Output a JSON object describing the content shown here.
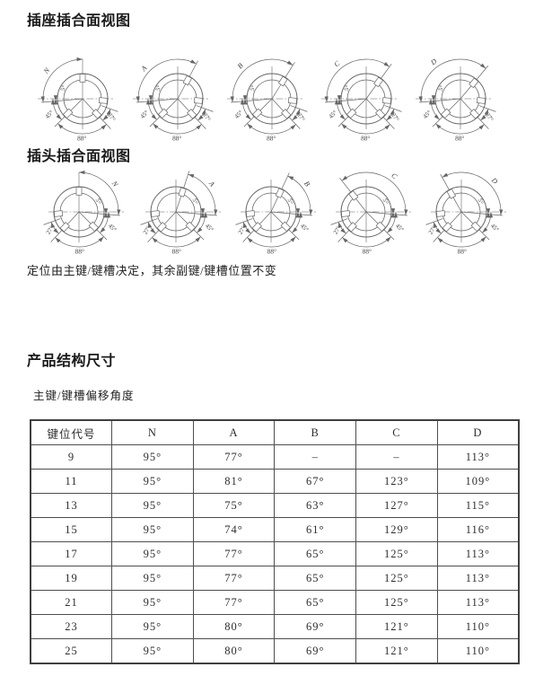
{
  "sections": {
    "socket_title": "插座插合面视图",
    "plug_title": "插头插合面视图",
    "note": "定位由主键/键槽决定，其余副键/键槽位置不变",
    "dims_title": "产品结构尺寸",
    "table_subtitle": "主键/键槽偏移角度"
  },
  "diagrams": {
    "dim_labels": {
      "offset": "5°",
      "lower": "45°",
      "bottom": "88°",
      "side": "27°"
    },
    "socket": {
      "letters": [
        "N",
        "A",
        "B",
        "C",
        "D"
      ],
      "main_angles": [
        90,
        62,
        58,
        54,
        50
      ]
    },
    "plug": {
      "letters": [
        "N",
        "A",
        "B",
        "C",
        "D"
      ],
      "main_angles": [
        90,
        72,
        65,
        128,
        119
      ]
    },
    "line_color": "#666666",
    "text_color": "#3a3a3a"
  },
  "table": {
    "columns": [
      "键位代号",
      "N",
      "A",
      "B",
      "C",
      "D"
    ],
    "rows": [
      [
        "9",
        "95°",
        "77°",
        "–",
        "–",
        "113°"
      ],
      [
        "11",
        "95°",
        "81°",
        "67°",
        "123°",
        "109°"
      ],
      [
        "13",
        "95°",
        "75°",
        "63°",
        "127°",
        "115°"
      ],
      [
        "15",
        "95°",
        "74°",
        "61°",
        "129°",
        "116°"
      ],
      [
        "17",
        "95°",
        "77°",
        "65°",
        "125°",
        "113°"
      ],
      [
        "19",
        "95°",
        "77°",
        "65°",
        "125°",
        "113°"
      ],
      [
        "21",
        "95°",
        "77°",
        "65°",
        "125°",
        "113°"
      ],
      [
        "23",
        "95°",
        "80°",
        "69°",
        "121°",
        "110°"
      ],
      [
        "25",
        "95°",
        "80°",
        "69°",
        "121°",
        "110°"
      ]
    ]
  }
}
